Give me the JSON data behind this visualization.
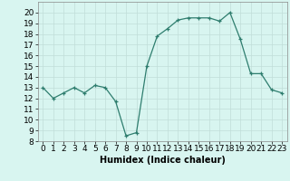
{
  "x": [
    0,
    1,
    2,
    3,
    4,
    5,
    6,
    7,
    8,
    9,
    10,
    11,
    12,
    13,
    14,
    15,
    16,
    17,
    18,
    19,
    20,
    21,
    22,
    23
  ],
  "y": [
    13,
    12,
    12.5,
    13,
    12.5,
    13.2,
    13,
    11.7,
    8.5,
    8.8,
    15,
    17.8,
    18.5,
    19.3,
    19.5,
    19.5,
    19.5,
    19.2,
    20,
    17.5,
    14.3,
    14.3,
    12.8,
    12.5
  ],
  "xlabel": "Humidex (Indice chaleur)",
  "xlim": [
    -0.5,
    23.5
  ],
  "ylim": [
    8,
    21
  ],
  "yticks": [
    8,
    9,
    10,
    11,
    12,
    13,
    14,
    15,
    16,
    17,
    18,
    19,
    20
  ],
  "xticks": [
    0,
    1,
    2,
    3,
    4,
    5,
    6,
    7,
    8,
    9,
    10,
    11,
    12,
    13,
    14,
    15,
    16,
    17,
    18,
    19,
    20,
    21,
    22,
    23
  ],
  "line_color": "#2e7d6e",
  "marker": "+",
  "bg_color": "#d8f5f0",
  "grid_color": "#c0ddd8",
  "label_fontsize": 7,
  "tick_fontsize": 6.5
}
